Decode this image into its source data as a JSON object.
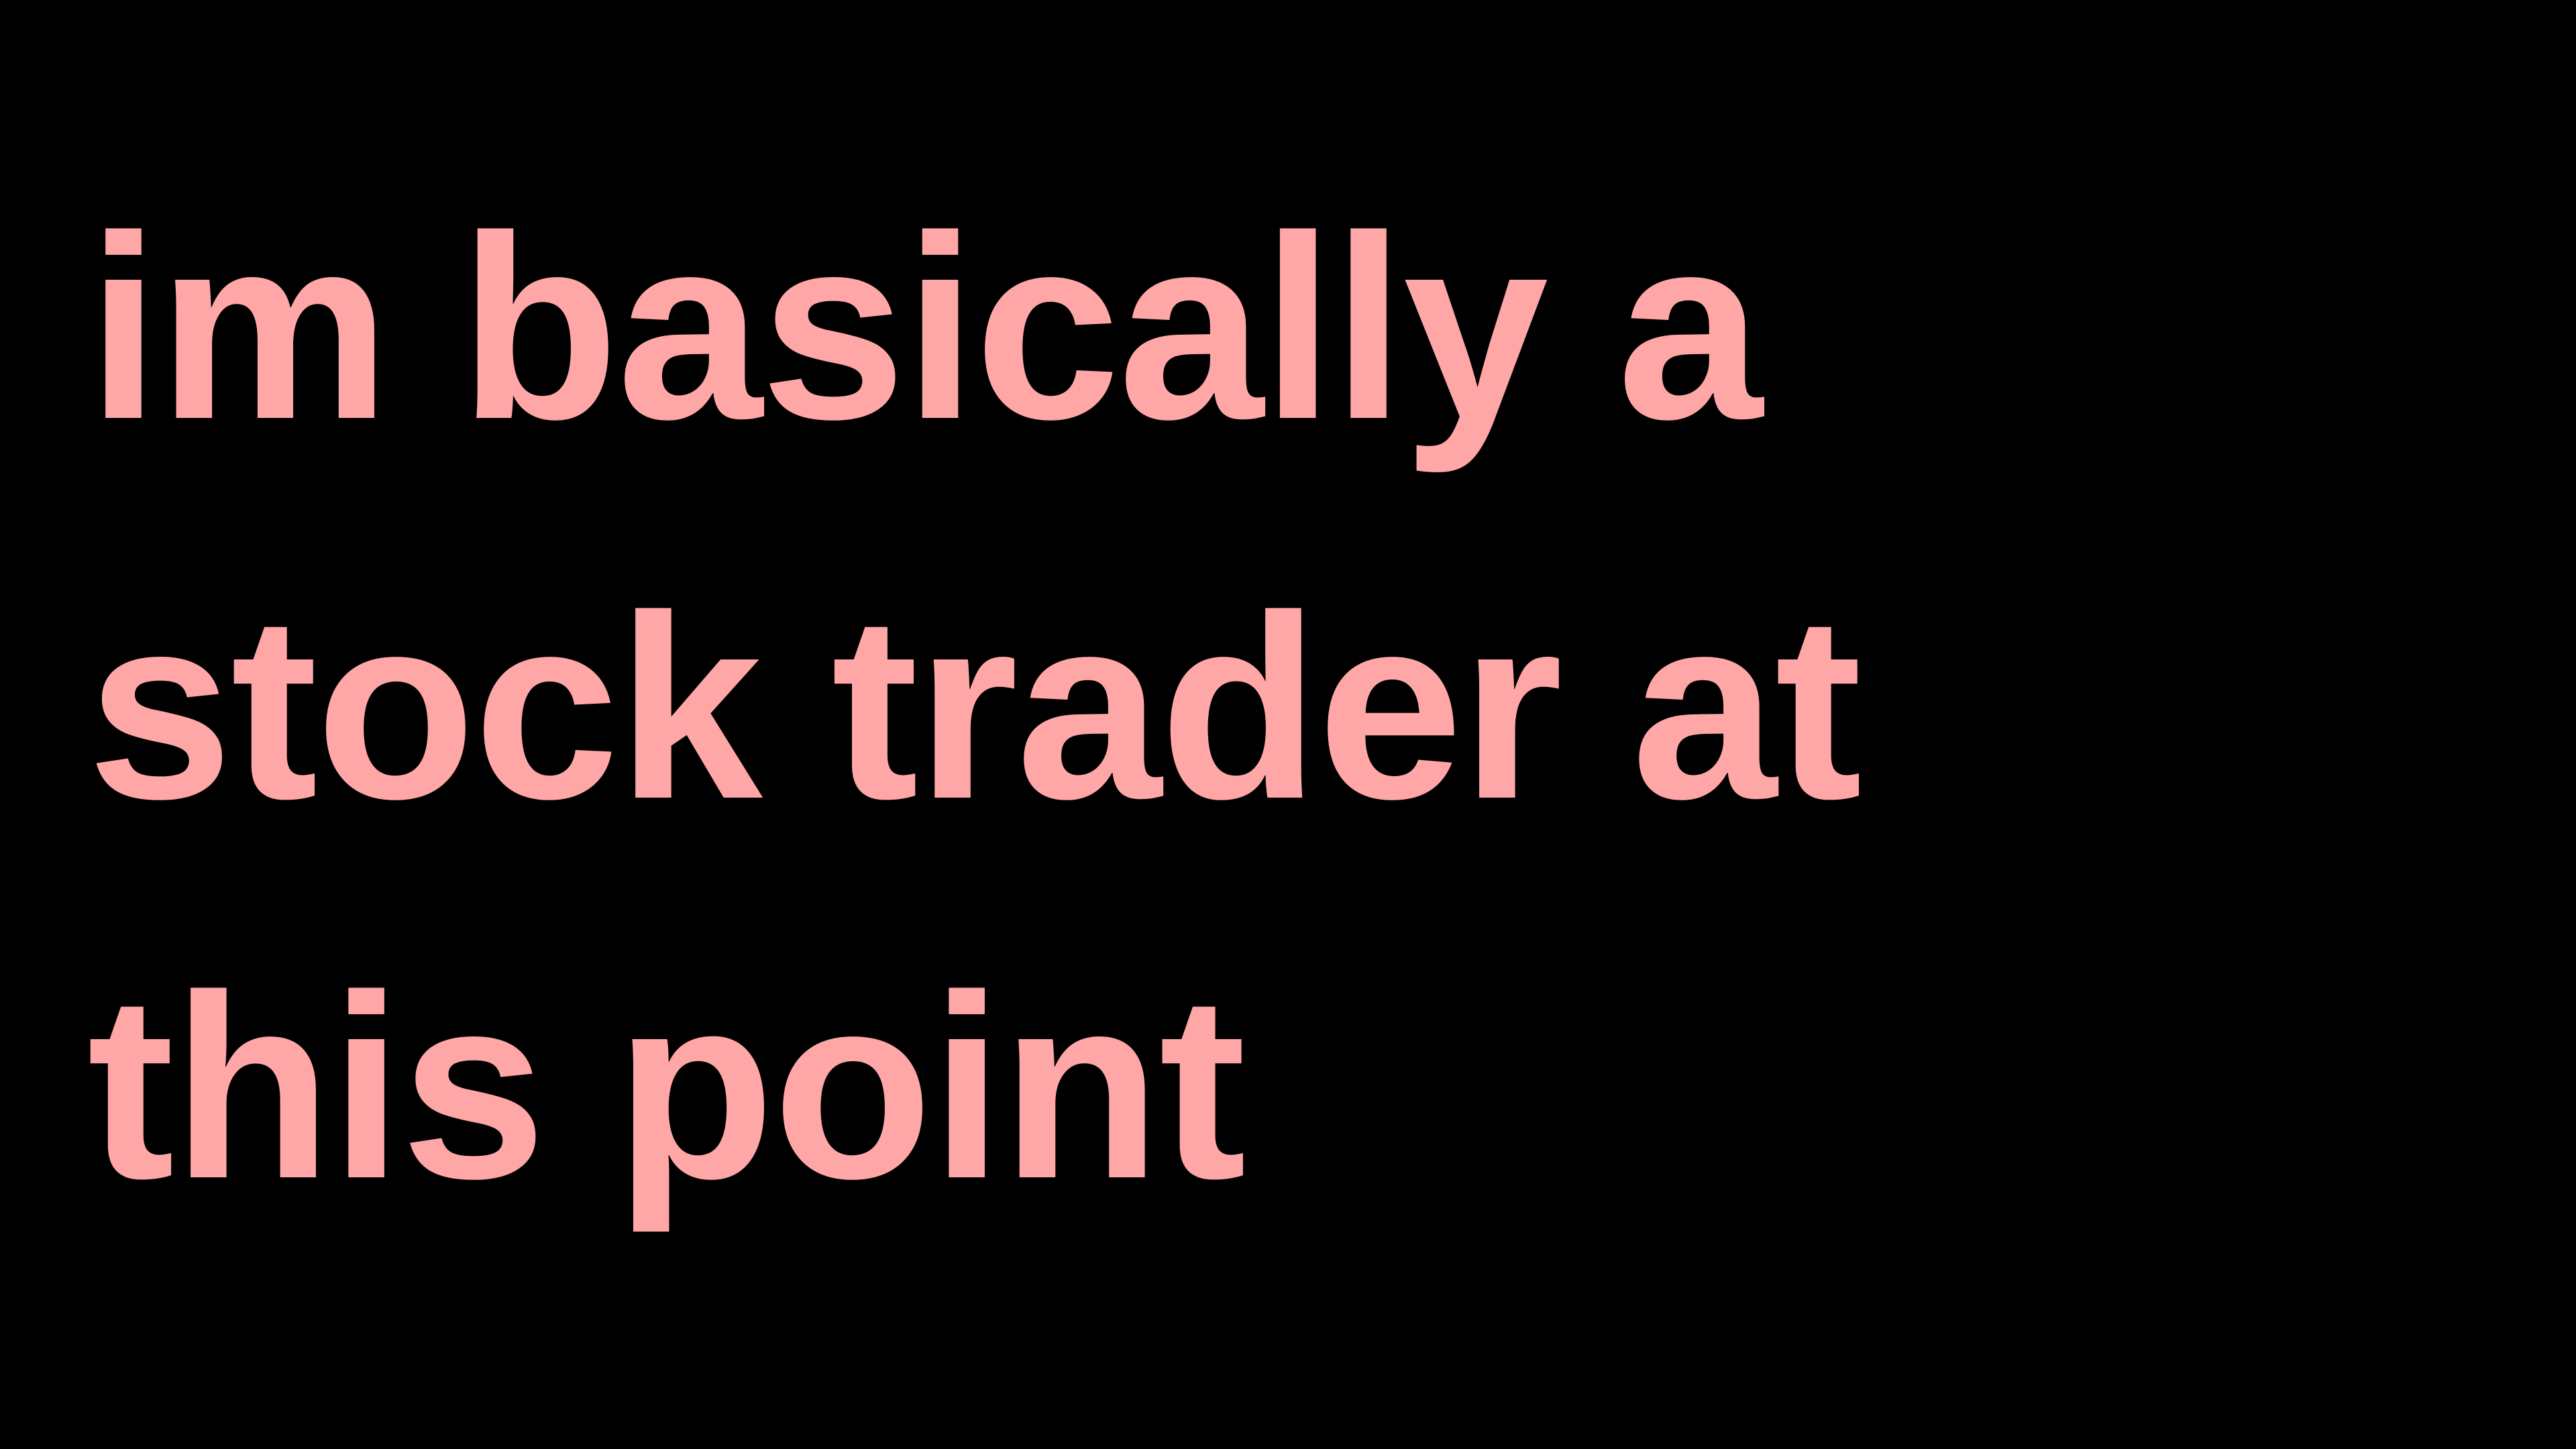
{
  "caption": {
    "lines": [
      "im basically a",
      "stock trader at",
      "this point"
    ]
  },
  "colors": {
    "background": "#000000",
    "text": "#FFA6A6"
  }
}
